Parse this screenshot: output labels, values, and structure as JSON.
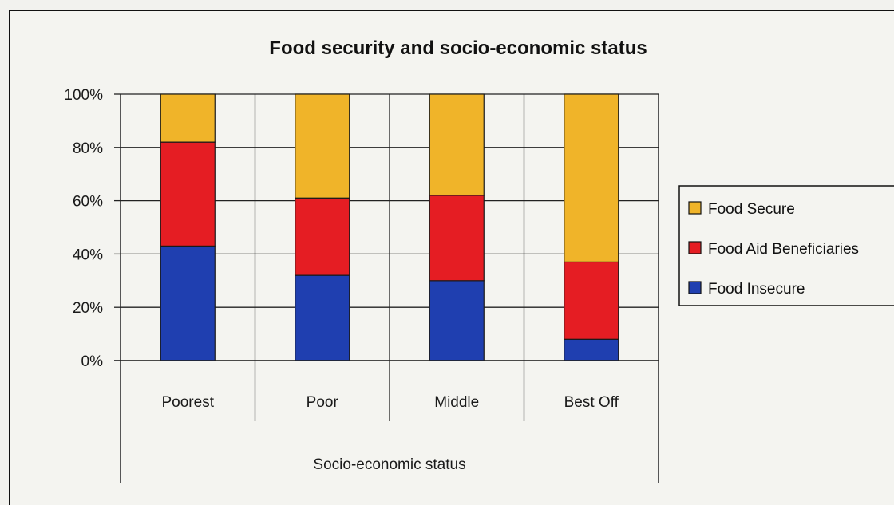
{
  "chart_data": {
    "type": "bar",
    "stacked": true,
    "title": "Food security and socio-economic status",
    "xlabel": "Socio-economic status",
    "ylabel": "",
    "ylim": [
      0,
      100
    ],
    "y_ticks": [
      "0%",
      "20%",
      "40%",
      "60%",
      "80%",
      "100%"
    ],
    "categories": [
      "Poorest",
      "Poor",
      "Middle",
      "Best Off"
    ],
    "series": [
      {
        "name": "Food Insecure",
        "color": "#1f3fb0",
        "values": [
          43,
          32,
          30,
          8
        ]
      },
      {
        "name": "Food Aid Beneficiaries",
        "color": "#e51d23",
        "values": [
          39,
          29,
          32,
          29
        ]
      },
      {
        "name": "Food Secure",
        "color": "#f0b429",
        "values": [
          18,
          39,
          38,
          63
        ]
      }
    ],
    "legend_order": [
      "Food Secure",
      "Food Aid Beneficiaries",
      "Food Insecure"
    ],
    "legend_position": "right",
    "grid": true
  }
}
